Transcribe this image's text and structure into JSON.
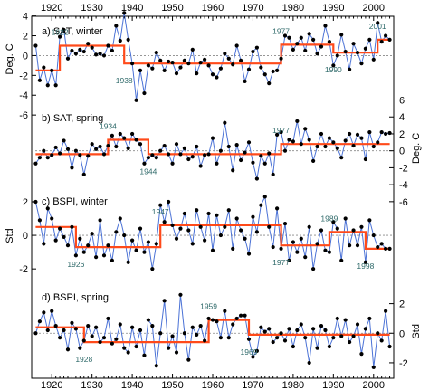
{
  "x_ticks": [
    "1920",
    "1930",
    "1940",
    "1950",
    "1960",
    "1970",
    "1980",
    "1990",
    "2000"
  ],
  "chart_data": [
    {
      "type": "line",
      "panel_label": "a) SAT, winter",
      "ylabel": "Deg. C",
      "y_axis_side": "left",
      "yticks": [
        "4",
        "2",
        "0",
        "-2",
        "-4",
        "-6"
      ],
      "ylim": [
        -4.8,
        3.6
      ],
      "x": [
        1916,
        1917,
        1918,
        1919,
        1920,
        1921,
        1922,
        1923,
        1924,
        1925,
        1926,
        1927,
        1928,
        1929,
        1930,
        1931,
        1932,
        1933,
        1934,
        1935,
        1936,
        1937,
        1938,
        1939,
        1940,
        1941,
        1942,
        1943,
        1944,
        1945,
        1946,
        1947,
        1948,
        1949,
        1950,
        1951,
        1952,
        1953,
        1954,
        1955,
        1956,
        1957,
        1958,
        1959,
        1960,
        1961,
        1962,
        1963,
        1964,
        1965,
        1966,
        1967,
        1968,
        1969,
        1970,
        1971,
        1972,
        1973,
        1974,
        1975,
        1976,
        1977,
        1978,
        1979,
        1980,
        1981,
        1982,
        1983,
        1984,
        1985,
        1986,
        1987,
        1988,
        1989,
        1990,
        1991,
        1992,
        1993,
        1994,
        1995,
        1996,
        1997,
        1998,
        1999,
        2000,
        2001,
        2002,
        2003,
        2004
      ],
      "values": [
        1.0,
        -2.5,
        -1.2,
        -3.0,
        -1.5,
        -3.0,
        1.9,
        2.6,
        -0.3,
        0.5,
        0.2,
        0.6,
        0.4,
        1.2,
        0.8,
        0.1,
        0.2,
        0.0,
        1.0,
        0.5,
        3.0,
        1.5,
        4.3,
        1.6,
        -0.8,
        -4.5,
        -1.5,
        -3.8,
        -1.0,
        -1.3,
        0.3,
        -0.5,
        -1.5,
        -0.6,
        -0.7,
        -1.8,
        -1.2,
        -0.5,
        -0.8,
        0.6,
        -1.8,
        -0.7,
        -0.4,
        -1.0,
        -1.9,
        -2.2,
        -1.3,
        0.2,
        -0.3,
        -0.9,
        1.0,
        -0.5,
        -2.6,
        -1.4,
        0.4,
        0.8,
        -1.2,
        -1.9,
        -2.8,
        -1.6,
        -1.5,
        -0.3,
        2.0,
        1.8,
        0.6,
        1.2,
        1.8,
        0.5,
        2.2,
        1.6,
        0.2,
        0.9,
        3.0,
        1.4,
        -1.0,
        0.0,
        2.1,
        0.4,
        -1.4,
        1.2,
        0.3,
        -0.8,
        0.7,
        1.6,
        -0.4,
        3.3,
        1.4,
        2.0,
        1.6
      ],
      "regime_shifts": [
        {
          "x_start": 1916,
          "x_end": 1922,
          "level": -1.5
        },
        {
          "x_start": 1922,
          "x_end": 1938,
          "level": 1.0
        },
        {
          "x_start": 1938,
          "x_end": 1977,
          "level": -0.8
        },
        {
          "x_start": 1977,
          "x_end": 1990,
          "level": 1.1
        },
        {
          "x_start": 1990,
          "x_end": 2001,
          "level": 0.3
        },
        {
          "x_start": 2001,
          "x_end": 2004,
          "level": 1.6
        }
      ],
      "annotations": [
        {
          "text": "1922",
          "x": 1922,
          "pos": "above"
        },
        {
          "text": "1938",
          "x": 1938,
          "pos": "below"
        },
        {
          "text": "1977",
          "x": 1977,
          "pos": "above"
        },
        {
          "text": "1990",
          "x": 1990,
          "pos": "below"
        },
        {
          "text": "2001",
          "x": 2001,
          "pos": "above"
        }
      ]
    },
    {
      "type": "line",
      "panel_label": "b) SAT, spring",
      "ylabel": "Deg. C",
      "y_axis_side": "right",
      "yticks": [
        "6",
        "4",
        "2",
        "0",
        "-2",
        "-4",
        "-6"
      ],
      "ylim": [
        -4.2,
        5.2
      ],
      "x": [
        1916,
        1917,
        1918,
        1919,
        1920,
        1921,
        1922,
        1923,
        1924,
        1925,
        1926,
        1927,
        1928,
        1929,
        1930,
        1931,
        1932,
        1933,
        1934,
        1935,
        1936,
        1937,
        1938,
        1939,
        1940,
        1941,
        1942,
        1943,
        1944,
        1945,
        1946,
        1947,
        1948,
        1949,
        1950,
        1951,
        1952,
        1953,
        1954,
        1955,
        1956,
        1957,
        1958,
        1959,
        1960,
        1961,
        1962,
        1963,
        1964,
        1965,
        1966,
        1967,
        1968,
        1969,
        1970,
        1971,
        1972,
        1973,
        1974,
        1975,
        1976,
        1977,
        1978,
        1979,
        1980,
        1981,
        1982,
        1983,
        1984,
        1985,
        1986,
        1987,
        1988,
        1989,
        1990,
        1991,
        1992,
        1993,
        1994,
        1995,
        1996,
        1997,
        1998,
        1999,
        2000,
        2001,
        2002,
        2003,
        2004
      ],
      "values": [
        -1.5,
        -0.8,
        0.0,
        -0.8,
        -0.5,
        0.4,
        -0.3,
        1.2,
        0.2,
        -2.0,
        0.0,
        -0.5,
        -2.8,
        -0.6,
        0.8,
        0.2,
        0.5,
        -0.4,
        0.6,
        1.8,
        0.5,
        2.0,
        1.5,
        0.3,
        2.0,
        1.3,
        0.8,
        -1.5,
        -0.8,
        -0.5,
        -0.8,
        0.0,
        0.6,
        -0.4,
        -1.5,
        0.8,
        -0.4,
        0.3,
        -1.0,
        -0.7,
        0.5,
        -1.8,
        -0.5,
        -0.4,
        1.5,
        -1.5,
        0.0,
        3.3,
        0.5,
        -2.3,
        0.7,
        -1.1,
        -0.2,
        1.0,
        -1.4,
        -3.3,
        -0.6,
        -1.5,
        -0.3,
        -2.8,
        1.9,
        2.2,
        0.0,
        1.3,
        1.1,
        3.5,
        0.8,
        2.6,
        1.3,
        -1.2,
        0.5,
        2.0,
        0.5,
        1.5,
        1.0,
        0.3,
        -0.8,
        1.2,
        2.0,
        0.6,
        1.9,
        1.5,
        -1.0,
        2.2,
        0.5,
        1.0,
        2.2,
        2.0,
        2.1
      ],
      "regime_shifts": [
        {
          "x_start": 1916,
          "x_end": 1934,
          "level": -0.4
        },
        {
          "x_start": 1934,
          "x_end": 1944,
          "level": 1.3
        },
        {
          "x_start": 1944,
          "x_end": 1977,
          "level": -0.4
        },
        {
          "x_start": 1977,
          "x_end": 2004,
          "level": 0.8
        }
      ],
      "annotations": [
        {
          "text": "1934",
          "x": 1934,
          "pos": "above"
        },
        {
          "text": "1944",
          "x": 1944,
          "pos": "below"
        },
        {
          "text": "1977",
          "x": 1977,
          "pos": "above"
        }
      ]
    },
    {
      "type": "line",
      "panel_label": "c) BSPI, winter",
      "ylabel": "Std",
      "y_axis_side": "left",
      "yticks": [
        "2",
        "0",
        "-2"
      ],
      "ylim": [
        -2.8,
        2.7
      ],
      "x": [
        1916,
        1917,
        1918,
        1919,
        1920,
        1921,
        1922,
        1923,
        1924,
        1925,
        1926,
        1927,
        1928,
        1929,
        1930,
        1931,
        1932,
        1933,
        1934,
        1935,
        1936,
        1937,
        1938,
        1939,
        1940,
        1941,
        1942,
        1943,
        1944,
        1945,
        1946,
        1947,
        1948,
        1949,
        1950,
        1951,
        1952,
        1953,
        1954,
        1955,
        1956,
        1957,
        1958,
        1959,
        1960,
        1961,
        1962,
        1963,
        1964,
        1965,
        1966,
        1967,
        1968,
        1969,
        1970,
        1971,
        1972,
        1973,
        1974,
        1975,
        1976,
        1977,
        1978,
        1979,
        1980,
        1981,
        1982,
        1983,
        1984,
        1985,
        1986,
        1987,
        1988,
        1989,
        1990,
        1991,
        1992,
        1993,
        1994,
        1995,
        1996,
        1997,
        1998,
        1999,
        2000,
        2001,
        2002,
        2003,
        2004
      ],
      "values": [
        2.0,
        0.9,
        -0.5,
        1.6,
        1.0,
        -0.3,
        0.4,
        -0.1,
        -0.6,
        0.5,
        -1.2,
        -0.2,
        -1.0,
        -0.6,
        0.1,
        -1.3,
        0.9,
        -1.2,
        -0.6,
        -1.5,
        0.2,
        1.0,
        0.0,
        -1.6,
        -0.3,
        -0.9,
        0.4,
        -1.0,
        -0.4,
        -2.0,
        -0.5,
        1.8,
        0.8,
        2.0,
        0.6,
        -0.2,
        0.4,
        1.3,
        0.3,
        -0.5,
        1.5,
        0.5,
        -0.3,
        1.3,
        -0.9,
        1.2,
        0.0,
        0.5,
        1.5,
        -0.8,
        1.0,
        0.3,
        -0.2,
        -1.1,
        1.1,
        0.2,
        1.8,
        2.3,
        0.5,
        -0.7,
        1.6,
        -0.8,
        0.7,
        -1.5,
        -0.4,
        -1.0,
        -0.2,
        -1.3,
        0.5,
        -2.0,
        -0.5,
        0.3,
        -0.9,
        -1.0,
        0.8,
        0.4,
        -1.5,
        1.0,
        -0.6,
        0.3,
        -0.6,
        0.5,
        -1.6,
        0.9,
        0.0,
        -0.7,
        -0.5,
        -0.8,
        -0.8
      ],
      "regime_shifts": [
        {
          "x_start": 1916,
          "x_end": 1926,
          "level": 0.5
        },
        {
          "x_start": 1926,
          "x_end": 1947,
          "level": -0.7
        },
        {
          "x_start": 1947,
          "x_end": 1977,
          "level": 0.6
        },
        {
          "x_start": 1977,
          "x_end": 1989,
          "level": -0.6
        },
        {
          "x_start": 1989,
          "x_end": 1998,
          "level": 0.2
        },
        {
          "x_start": 1998,
          "x_end": 2004,
          "level": -0.8
        }
      ],
      "annotations": [
        {
          "text": "1926",
          "x": 1926,
          "pos": "below"
        },
        {
          "text": "1947",
          "x": 1947,
          "pos": "above"
        },
        {
          "text": "1977",
          "x": 1977,
          "pos": "below"
        },
        {
          "text": "1989",
          "x": 1989,
          "pos": "above"
        },
        {
          "text": "1998",
          "x": 1998,
          "pos": "below"
        }
      ]
    },
    {
      "type": "line",
      "panel_label": "d) BSPI, spring",
      "ylabel": "Std",
      "y_axis_side": "right",
      "yticks": [
        "2",
        "0",
        "-2"
      ],
      "ylim": [
        -2.8,
        3.2
      ],
      "x": [
        1916,
        1917,
        1918,
        1919,
        1920,
        1921,
        1922,
        1923,
        1924,
        1925,
        1926,
        1927,
        1928,
        1929,
        1930,
        1931,
        1932,
        1933,
        1934,
        1935,
        1936,
        1937,
        1938,
        1939,
        1940,
        1941,
        1942,
        1943,
        1944,
        1945,
        1946,
        1947,
        1948,
        1949,
        1950,
        1951,
        1952,
        1953,
        1954,
        1955,
        1956,
        1957,
        1958,
        1959,
        1960,
        1961,
        1962,
        1963,
        1964,
        1965,
        1966,
        1967,
        1968,
        1969,
        1970,
        1971,
        1972,
        1973,
        1974,
        1975,
        1976,
        1977,
        1978,
        1979,
        1980,
        1981,
        1982,
        1983,
        1984,
        1985,
        1986,
        1987,
        1988,
        1989,
        1990,
        1991,
        1992,
        1993,
        1994,
        1995,
        1996,
        1997,
        1998,
        1999,
        2000,
        2001,
        2002,
        2003,
        2004
      ],
      "values": [
        0.0,
        0.8,
        1.4,
        0.2,
        1.5,
        0.5,
        -0.3,
        0.2,
        -1.1,
        0.7,
        0.3,
        -1.0,
        -0.5,
        0.5,
        -0.2,
        0.4,
        -0.6,
        -0.3,
        1.0,
        -0.7,
        -0.4,
        0.6,
        -1.0,
        -1.3,
        0.4,
        -0.9,
        0.2,
        -1.5,
        0.9,
        0.5,
        -2.2,
        0.0,
        2.2,
        -1.0,
        -0.2,
        -1.3,
        2.6,
        0.0,
        -1.8,
        0.4,
        -0.1,
        0.5,
        -0.5,
        1.0,
        0.9,
        0.8,
        -0.3,
        1.5,
        -0.3,
        0.6,
        1.0,
        1.2,
        1.2,
        -0.4,
        -1.6,
        -1.2,
        0.4,
        0.1,
        0.3,
        -0.6,
        -0.3,
        0.0,
        -0.5,
        0.3,
        -0.9,
        0.2,
        0.6,
        -0.3,
        -2.0,
        0.3,
        -1.0,
        0.5,
        0.2,
        -0.9,
        -0.3,
        1.0,
        -0.2,
        0.9,
        -0.6,
        -0.2,
        0.6,
        -1.4,
        0.3,
        1.0,
        -2.3,
        0.0,
        -0.5,
        1.5,
        -0.9
      ],
      "regime_shifts": [
        {
          "x_start": 1916,
          "x_end": 1928,
          "level": 0.4
        },
        {
          "x_start": 1928,
          "x_end": 1959,
          "level": -0.6
        },
        {
          "x_start": 1959,
          "x_end": 1969,
          "level": 0.9
        },
        {
          "x_start": 1969,
          "x_end": 2004,
          "level": -0.1
        }
      ],
      "annotations": [
        {
          "text": "1928",
          "x": 1928,
          "pos": "below"
        },
        {
          "text": "1959",
          "x": 1959,
          "pos": "above"
        },
        {
          "text": "1969",
          "x": 1969,
          "pos": "below"
        }
      ]
    }
  ]
}
